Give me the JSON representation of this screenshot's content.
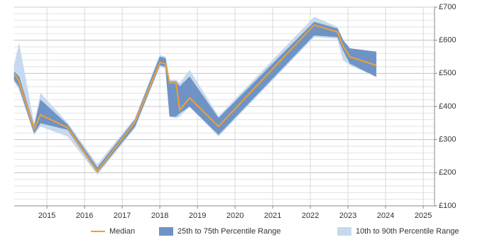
{
  "chart_data": {
    "type": "band-line",
    "x": [
      2014.13,
      2014.26,
      2014.66,
      2014.83,
      2015.55,
      2016.34,
      2017.34,
      2018.0,
      2018.15,
      2018.26,
      2018.43,
      2018.53,
      2018.79,
      2019.56,
      2022.1,
      2022.72,
      2022.87,
      2023.05,
      2023.75
    ],
    "series": [
      {
        "name": "Median",
        "color": "#f0a030",
        "values": [
          500,
          475,
          332,
          375,
          336,
          205,
          353,
          533,
          529,
          471,
          471,
          389,
          426,
          340,
          646,
          625,
          582,
          550,
          524
        ]
      }
    ],
    "bands": [
      {
        "name": "25th to 75th Percentile Range",
        "color": "#6f93c4",
        "low": [
          480,
          460,
          320,
          350,
          330,
          200,
          340,
          525,
          520,
          370,
          370,
          380,
          400,
          315,
          615,
          610,
          570,
          530,
          490
        ],
        "high": [
          505,
          490,
          340,
          420,
          345,
          215,
          360,
          550,
          545,
          475,
          475,
          460,
          490,
          365,
          655,
          635,
          600,
          575,
          565
        ]
      },
      {
        "name": "10th to 90th Percentile Range",
        "color": "#c6d9ee",
        "low": [
          475,
          450,
          315,
          340,
          310,
          195,
          335,
          520,
          515,
          370,
          365,
          370,
          400,
          310,
          610,
          605,
          540,
          525,
          490
        ],
        "high": [
          525,
          590,
          345,
          440,
          350,
          225,
          365,
          555,
          550,
          480,
          480,
          470,
          510,
          370,
          670,
          640,
          600,
          575,
          565
        ]
      }
    ],
    "xlim": [
      2014.13,
      2025.3
    ],
    "xticks": [
      2015,
      2016,
      2017,
      2018,
      2019,
      2020,
      2021,
      2022,
      2023,
      2024,
      2025
    ],
    "ylim": [
      100,
      700
    ],
    "yticks": [
      {
        "value": 100,
        "label": "£100"
      },
      {
        "value": 200,
        "label": "£200"
      },
      {
        "value": 300,
        "label": "£300"
      },
      {
        "value": 400,
        "label": "£400"
      },
      {
        "value": 500,
        "label": "£500"
      },
      {
        "value": 600,
        "label": "£600"
      },
      {
        "value": 700,
        "label": "£700"
      }
    ],
    "grid": true,
    "minor_grid": true,
    "legend": "bottom"
  }
}
